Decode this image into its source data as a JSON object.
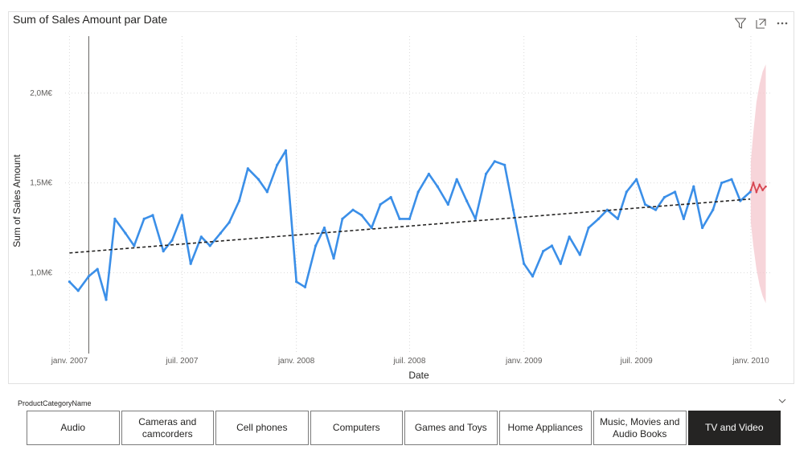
{
  "visual": {
    "title": "Sum of Sales Amount par Date",
    "header_icons": [
      "filter-icon",
      "focus-mode-icon",
      "more-options-icon"
    ]
  },
  "chart_data": {
    "type": "line",
    "title": "Sum of Sales Amount par Date",
    "xlabel": "Date",
    "ylabel": "Sum of Sales Amount",
    "x_ticks": [
      "janv. 2007",
      "juil. 2007",
      "janv. 2008",
      "juil. 2008",
      "janv. 2009",
      "juil. 2009",
      "janv. 2010"
    ],
    "y_ticks": [
      "1,0M€",
      "1,5M€",
      "2,0M€"
    ],
    "y_tick_values": [
      1.0,
      1.5,
      2.0
    ],
    "ylim": [
      0.55,
      2.25
    ],
    "xlim": [
      "2006-12-25",
      "2010-02-05"
    ],
    "grid": true,
    "colors": {
      "actual": "#3b8fe8",
      "trend": "#252423",
      "forecast": "#d64550",
      "forecast_band": "#f4c7cd",
      "gridline": "#d9d9d9"
    },
    "series": [
      {
        "kind": "actual",
        "x": [
          "2007-01-01",
          "2007-01-15",
          "2007-02-01",
          "2007-02-15",
          "2007-03-01",
          "2007-03-15",
          "2007-04-01",
          "2007-04-15",
          "2007-05-01",
          "2007-05-15",
          "2007-06-01",
          "2007-06-15",
          "2007-07-01",
          "2007-07-15",
          "2007-08-01",
          "2007-08-15",
          "2007-09-01",
          "2007-09-15",
          "2007-10-01",
          "2007-10-15",
          "2007-11-01",
          "2007-11-15",
          "2007-12-01",
          "2007-12-15",
          "2008-01-01",
          "2008-01-15",
          "2008-02-01",
          "2008-02-15",
          "2008-03-01",
          "2008-03-15",
          "2008-04-01",
          "2008-04-15",
          "2008-05-01",
          "2008-05-15",
          "2008-06-01",
          "2008-06-15",
          "2008-07-01",
          "2008-07-15",
          "2008-08-01",
          "2008-08-15",
          "2008-09-01",
          "2008-09-15",
          "2008-10-01",
          "2008-10-15",
          "2008-11-01",
          "2008-11-15",
          "2008-12-01",
          "2008-12-15",
          "2009-01-01",
          "2009-01-15",
          "2009-02-01",
          "2009-02-15",
          "2009-03-01",
          "2009-03-15",
          "2009-04-01",
          "2009-04-15",
          "2009-05-01",
          "2009-05-15",
          "2009-06-01",
          "2009-06-15",
          "2009-07-01",
          "2009-07-15",
          "2009-08-01",
          "2009-08-15",
          "2009-09-01",
          "2009-09-15",
          "2009-10-01",
          "2009-10-15",
          "2009-11-01",
          "2009-11-15",
          "2009-12-01",
          "2009-12-15",
          "2009-12-31"
        ],
        "values": [
          0.95,
          0.9,
          0.98,
          1.02,
          0.85,
          1.3,
          1.22,
          1.15,
          1.3,
          1.32,
          1.12,
          1.18,
          1.32,
          1.05,
          1.2,
          1.15,
          1.22,
          1.28,
          1.4,
          1.58,
          1.52,
          1.45,
          1.6,
          1.68,
          0.95,
          0.92,
          1.15,
          1.25,
          1.08,
          1.3,
          1.35,
          1.32,
          1.25,
          1.38,
          1.42,
          1.3,
          1.3,
          1.45,
          1.55,
          1.48,
          1.38,
          1.52,
          1.4,
          1.3,
          1.55,
          1.62,
          1.6,
          1.35,
          1.05,
          0.98,
          1.12,
          1.15,
          1.05,
          1.2,
          1.1,
          1.25,
          1.3,
          1.35,
          1.3,
          1.45,
          1.52,
          1.38,
          1.35,
          1.42,
          1.45,
          1.3,
          1.48,
          1.25,
          1.35,
          1.5,
          1.52,
          1.4,
          1.45
        ]
      },
      {
        "kind": "trend",
        "x": [
          "2007-01-01",
          "2009-12-31"
        ],
        "values": [
          1.11,
          1.41
        ]
      },
      {
        "kind": "forecast",
        "x": [
          "2010-01-01",
          "2010-01-05",
          "2010-01-10",
          "2010-01-15",
          "2010-01-20",
          "2010-01-25"
        ],
        "values": [
          1.46,
          1.5,
          1.45,
          1.49,
          1.46,
          1.48
        ],
        "upper": [
          1.62,
          1.78,
          1.95,
          2.05,
          2.12,
          2.16
        ],
        "lower": [
          1.28,
          1.15,
          1.02,
          0.93,
          0.87,
          0.83
        ]
      }
    ]
  },
  "slicer": {
    "title": "ProductCategoryName",
    "buttons": [
      {
        "label": "Audio",
        "selected": false
      },
      {
        "label": "Cameras and camcorders",
        "selected": false
      },
      {
        "label": "Cell phones",
        "selected": false
      },
      {
        "label": "Computers",
        "selected": false
      },
      {
        "label": "Games and Toys",
        "selected": false
      },
      {
        "label": "Home Appliances",
        "selected": false
      },
      {
        "label": "Music, Movies and Audio Books",
        "selected": false
      },
      {
        "label": "TV and Video",
        "selected": true
      }
    ]
  }
}
